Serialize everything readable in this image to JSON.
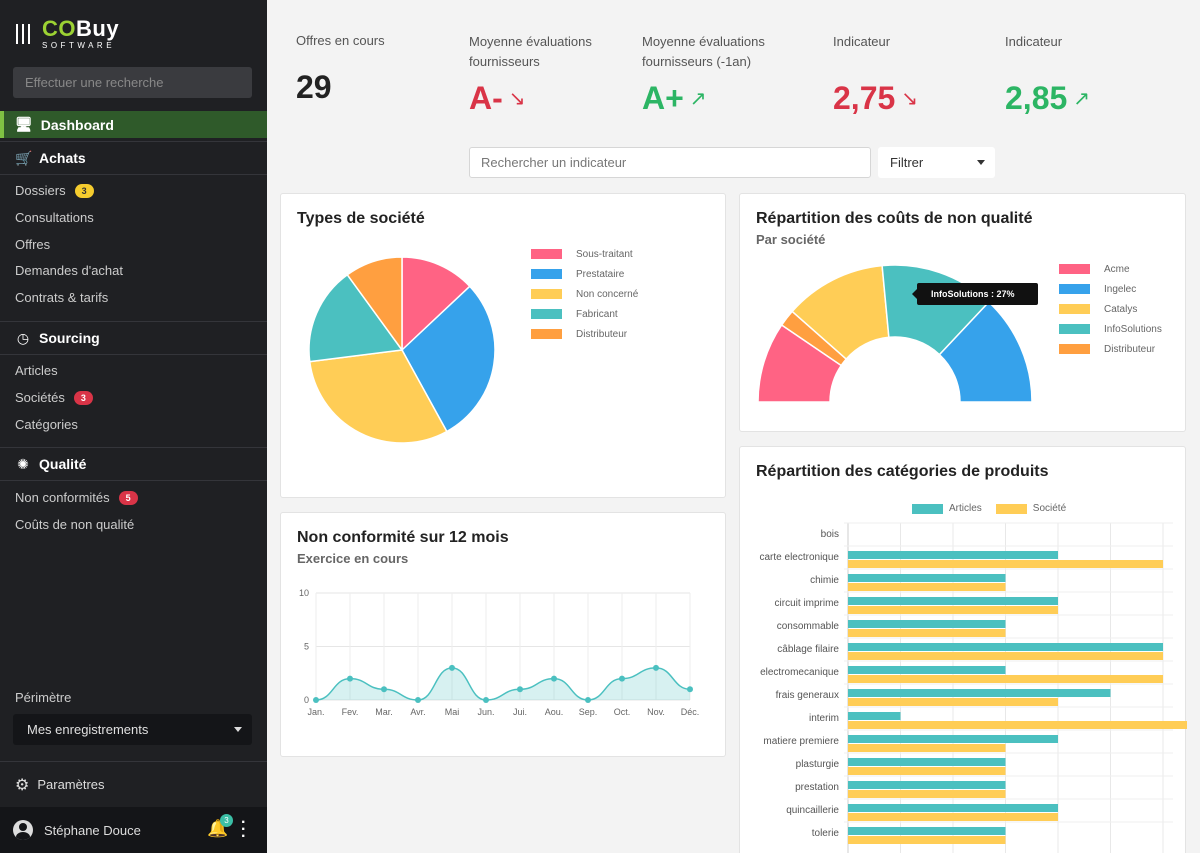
{
  "app": {
    "brand_co": "CO",
    "brand_buy": "Buy",
    "brand_sub": "SOFTWARE"
  },
  "sidebar": {
    "search_placeholder": "Effectuer une recherche",
    "dashboard": "Dashboard",
    "achats": {
      "title": "Achats",
      "items": [
        {
          "label": "Dossiers",
          "badge": "3"
        },
        {
          "label": "Consultations"
        },
        {
          "label": "Offres"
        },
        {
          "label": "Demandes d'achat"
        },
        {
          "label": "Contrats & tarifs"
        }
      ]
    },
    "sourcing": {
      "title": "Sourcing",
      "items": [
        {
          "label": "Articles"
        },
        {
          "label": "Sociétés",
          "badge": "3"
        },
        {
          "label": "Catégories"
        }
      ]
    },
    "qualite": {
      "title": "Qualité",
      "items": [
        {
          "label": "Non conformités",
          "badge": "5"
        },
        {
          "label": "Coûts de non qualité"
        }
      ]
    },
    "perimetre_label": "Périmètre",
    "perimetre_value": "Mes enregistrements",
    "parametres": "Paramètres",
    "user_name": "Stéphane Douce",
    "notif_count": "3"
  },
  "kpis": [
    {
      "label": "Offres en cours",
      "value": "29",
      "arrow": ""
    },
    {
      "label": "Moyenne évaluations fournisseurs",
      "value": "A-",
      "arrow": "↘"
    },
    {
      "label": "Moyenne évaluations fournisseurs (-1an)",
      "value": "A+",
      "arrow": "↗"
    },
    {
      "label": "Indicateur",
      "value": "2,75",
      "arrow": "↘"
    },
    {
      "label": "Indicateur",
      "value": "2,85",
      "arrow": "↗"
    }
  ],
  "indicator_search": {
    "placeholder": "Rechercher un indicateur"
  },
  "filter": {
    "label": "Filtrer"
  },
  "colors": {
    "pink": "#ff6384",
    "blue": "#36a2eb",
    "yellow": "#ffcd56",
    "teal": "#4bc0c0",
    "orange": "#ff9f40"
  },
  "charts": {
    "types": {
      "title": "Types de société",
      "chart_data": {
        "type": "pie",
        "labels": [
          "Sous-traitant",
          "Prestataire",
          "Non concerné",
          "Fabricant",
          "Distributeur"
        ],
        "values": [
          13,
          29,
          31,
          17,
          10
        ]
      }
    },
    "couts": {
      "title": "Répartition des coûts de non qualité",
      "subtitle": "Par société",
      "tooltip": "InfoSolutions : 27%",
      "chart_data": {
        "type": "pie",
        "labels": [
          "Acme",
          "Ingelec",
          "Catalys",
          "InfoSolutions",
          "Distributeur"
        ],
        "values": [
          19,
          26,
          24,
          27,
          4
        ]
      }
    },
    "nonconf": {
      "title": "Non conformité sur 12 mois",
      "subtitle": "Exercice en cours",
      "chart_data": {
        "type": "area",
        "categories": [
          "Jan.",
          "Fev.",
          "Mar.",
          "Avr.",
          "Mai",
          "Jun.",
          "Jui.",
          "Aou.",
          "Sep.",
          "Oct.",
          "Nov.",
          "Déc."
        ],
        "values": [
          0,
          2,
          1,
          0,
          3,
          0,
          1,
          2,
          0,
          2,
          3,
          1
        ],
        "ylim": [
          0,
          10
        ],
        "yticks": [
          0,
          5,
          10
        ]
      }
    },
    "categories": {
      "title": "Répartition des catégories de produits",
      "chart_data": {
        "type": "bar",
        "orientation": "horizontal",
        "categories": [
          "bois",
          "carte electronique",
          "chimie",
          "circuit imprime",
          "consommable",
          "câblage filaire",
          "electromecanique",
          "frais generaux",
          "interim",
          "matiere premiere",
          "plasturgie",
          "prestation",
          "quincaillerie",
          "tolerie"
        ],
        "series": [
          {
            "name": "Articles",
            "values": [
              0,
              4,
              3,
              4,
              3,
              6,
              3,
              5,
              1,
              4,
              3,
              3,
              4,
              3
            ]
          },
          {
            "name": "Société",
            "values": [
              0,
              6,
              3,
              4,
              3,
              6,
              6,
              4,
              8,
              3,
              3,
              3,
              4,
              3
            ]
          }
        ]
      }
    }
  }
}
